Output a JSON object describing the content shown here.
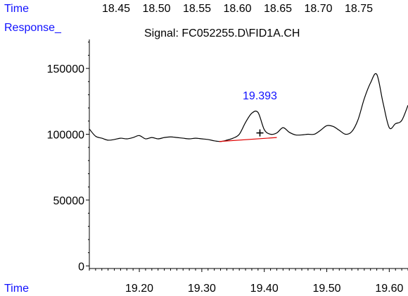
{
  "colors": {
    "signal": "#000000",
    "baseline": "#e00000",
    "labels": "#1010ff"
  },
  "chart_data": {
    "type": "line",
    "title": "Signal: FC052255.D\\FID1A.CH",
    "top_axis_label": "Time",
    "top_ticks": [
      "18.45",
      "18.50",
      "18.55",
      "18.60",
      "18.65",
      "18.70",
      "18.75"
    ],
    "ylabel": "Response_",
    "xlabel": "Time",
    "xlim": [
      19.12,
      19.63
    ],
    "ylim": [
      -2000,
      172000
    ],
    "x_ticks": [
      19.2,
      19.3,
      19.4,
      19.5,
      19.6
    ],
    "x_tick_labels": [
      "19.20",
      "19.30",
      "19.40",
      "19.50",
      "19.60"
    ],
    "y_ticks": [
      0,
      50000,
      100000,
      150000
    ],
    "y_tick_labels": [
      "0",
      "50000",
      "100000",
      "150000"
    ],
    "peak_annotation": {
      "text": "19.393",
      "x": 19.393,
      "y": 118000
    },
    "peak_marker": {
      "x": 19.393,
      "y": 101000
    },
    "baseline_segment": {
      "x": [
        19.328,
        19.42
      ],
      "y": [
        94500,
        97500
      ]
    },
    "series": [
      {
        "x": [
          19.12,
          19.13,
          19.14,
          19.15,
          19.16,
          19.17,
          19.18,
          19.19,
          19.2,
          19.21,
          19.22,
          19.23,
          19.24,
          19.25,
          19.26,
          19.27,
          19.28,
          19.29,
          19.3,
          19.31,
          19.32,
          19.33,
          19.34,
          19.35,
          19.36,
          19.37,
          19.38,
          19.39,
          19.4,
          19.41,
          19.42,
          19.43,
          19.44,
          19.45,
          19.46,
          19.47,
          19.48,
          19.49,
          19.5,
          19.51,
          19.52,
          19.53,
          19.54,
          19.55,
          19.56,
          19.57,
          19.58,
          19.59,
          19.6,
          19.61,
          19.62,
          19.63
        ],
        "values": [
          104000,
          98500,
          97000,
          95500,
          96000,
          97000,
          96500,
          97500,
          99000,
          96500,
          97500,
          96500,
          97500,
          98000,
          97500,
          97000,
          96500,
          97000,
          96500,
          96000,
          95000,
          94500,
          95500,
          97000,
          100000,
          109000,
          116000,
          116500,
          103500,
          100000,
          101000,
          105000,
          101500,
          99500,
          99500,
          100000,
          100000,
          103000,
          106500,
          106000,
          103000,
          100000,
          102000,
          111000,
          127000,
          139000,
          145500,
          124000,
          105000,
          108000,
          110500,
          122000
        ]
      }
    ]
  }
}
